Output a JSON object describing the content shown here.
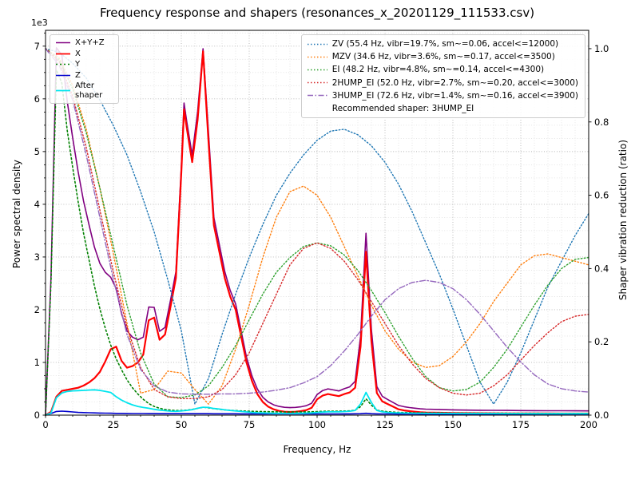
{
  "chart_data": {
    "type": "line",
    "title": "Frequency response and shapers (resonances_x_20201129_111533.csv)",
    "xlabel": "Frequency, Hz",
    "ylabel_left": "Power spectral density",
    "ylabel_right": "Shaper vibration reduction (ratio)",
    "grid": "both",
    "legend_positions": [
      "upper-left",
      "upper-right"
    ],
    "xlim": [
      0,
      200
    ],
    "x_major_ticks": [
      0,
      25,
      50,
      75,
      100,
      125,
      150,
      175,
      200
    ],
    "x_minor_step": 5,
    "left_axis": {
      "lim": [
        0,
        7300
      ],
      "ticks": [
        0,
        1000,
        2000,
        3000,
        4000,
        5000,
        6000,
        7000
      ],
      "tick_labels": [
        "0",
        "1",
        "2",
        "3",
        "4",
        "5",
        "6",
        "7"
      ],
      "minor_step": 250,
      "offset_text": "1e3"
    },
    "right_axis": {
      "lim": [
        0,
        1.05
      ],
      "ticks": [
        0,
        0.2,
        0.4,
        0.6,
        0.8,
        1.0
      ],
      "tick_labels": [
        "0.0",
        "0.2",
        "0.4",
        "0.6",
        "0.8",
        "1.0"
      ]
    },
    "psd_x": [
      0,
      2,
      4,
      6,
      8,
      10,
      12,
      14,
      16,
      18,
      20,
      22,
      24,
      26,
      28,
      30,
      32,
      34,
      36,
      38,
      40,
      42,
      44,
      46,
      48,
      50,
      51,
      52,
      54,
      56,
      58,
      60,
      62,
      64,
      66,
      68,
      70,
      72,
      74,
      76,
      78,
      80,
      82,
      84,
      86,
      88,
      90,
      92,
      94,
      96,
      98,
      100,
      102,
      104,
      106,
      108,
      110,
      112,
      114,
      116,
      118,
      120,
      122,
      124,
      126,
      128,
      130,
      132,
      134,
      136,
      138,
      140,
      145,
      150,
      155,
      160,
      165,
      170,
      175,
      180,
      185,
      190,
      195,
      200
    ],
    "psd_series": [
      {
        "name": "X+Y+Z",
        "color": "#800080",
        "dash": "",
        "width": 1.6,
        "y": [
          0,
          2590,
          6970,
          6835,
          5950,
          5260,
          4620,
          4060,
          3615,
          3190,
          2880,
          2710,
          2615,
          2405,
          1925,
          1600,
          1480,
          1430,
          1480,
          2050,
          2045,
          1590,
          1665,
          2175,
          2715,
          4715,
          5920,
          5570,
          4935,
          5755,
          6950,
          5365,
          3745,
          3235,
          2725,
          2365,
          2110,
          1605,
          1100,
          745,
          495,
          340,
          250,
          195,
          165,
          148,
          142,
          147,
          158,
          179,
          226,
          390,
          465,
          498,
          479,
          459,
          502,
          536,
          640,
          1490,
          3450,
          1620,
          540,
          358,
          297,
          240,
          183,
          161,
          144,
          132,
          120,
          114,
          107,
          100,
          96,
          93,
          91,
          89,
          86,
          85,
          84,
          83,
          82,
          81
        ]
      },
      {
        "name": "X",
        "color": "#ff0000",
        "dash": "",
        "width": 2.2,
        "y": [
          0,
          60,
          350,
          460,
          480,
          500,
          520,
          560,
          620,
          700,
          820,
          1020,
          1250,
          1300,
          1030,
          900,
          930,
          1000,
          1150,
          1800,
          1850,
          1430,
          1530,
          2050,
          2600,
          4600,
          5800,
          5450,
          4800,
          5600,
          6900,
          5200,
          3600,
          3100,
          2600,
          2250,
          2000,
          1500,
          1000,
          650,
          400,
          250,
          160,
          110,
          80,
          65,
          60,
          65,
          75,
          95,
          140,
          300,
          370,
          400,
          380,
          360,
          400,
          430,
          520,
          1300,
          3100,
          1400,
          420,
          260,
          210,
          160,
          110,
          90,
          75,
          65,
          55,
          50,
          45,
          40,
          38,
          36,
          35,
          34,
          33,
          32,
          32,
          31,
          31,
          30
        ]
      },
      {
        "name": "Y",
        "color": "#008000",
        "dash": "2 3",
        "width": 1.6,
        "y": [
          0,
          2500,
          6550,
          6300,
          5400,
          4700,
          4050,
          3450,
          2950,
          2450,
          2020,
          1650,
          1330,
          1070,
          860,
          670,
          520,
          400,
          300,
          220,
          165,
          130,
          108,
          95,
          88,
          90,
          92,
          95,
          108,
          128,
          150,
          140,
          122,
          110,
          100,
          92,
          86,
          80,
          76,
          72,
          70,
          68,
          66,
          64,
          62,
          61,
          60,
          60,
          61,
          62,
          64,
          68,
          72,
          75,
          76,
          76,
          78,
          82,
          95,
          160,
          310,
          190,
          95,
          75,
          65,
          58,
          52,
          50,
          48,
          46,
          45,
          44,
          42,
          40,
          39,
          38,
          37,
          36,
          35,
          35,
          34,
          34,
          33,
          33
        ]
      },
      {
        "name": "Z",
        "color": "#0000cd",
        "dash": "",
        "width": 1.6,
        "y": [
          0,
          30,
          70,
          75,
          70,
          60,
          52,
          48,
          45,
          42,
          40,
          38,
          36,
          34,
          33,
          32,
          31,
          30,
          30,
          29,
          29,
          28,
          28,
          28,
          27,
          27,
          27,
          27,
          27,
          28,
          28,
          27,
          26,
          26,
          25,
          25,
          25,
          24,
          24,
          24,
          23,
          23,
          23,
          22,
          22,
          22,
          22,
          22,
          22,
          22,
          22,
          23,
          23,
          23,
          23,
          23,
          24,
          24,
          25,
          28,
          35,
          28,
          24,
          23,
          22,
          22,
          21,
          21,
          21,
          21,
          20,
          20,
          20,
          20,
          19,
          19,
          19,
          19,
          18,
          18,
          18,
          18,
          18,
          18
        ]
      },
      {
        "name": "After shaper",
        "color": "#00e5ee",
        "dash": "",
        "width": 1.8,
        "y": [
          0,
          40,
          330,
          420,
          450,
          460,
          465,
          470,
          475,
          480,
          470,
          450,
          430,
          350,
          285,
          235,
          195,
          165,
          145,
          130,
          110,
          95,
          85,
          75,
          72,
          80,
          85,
          90,
          105,
          130,
          150,
          145,
          125,
          115,
          100,
          90,
          80,
          70,
          60,
          52,
          46,
          42,
          38,
          35,
          33,
          32,
          32,
          33,
          35,
          38,
          42,
          52,
          58,
          62,
          62,
          62,
          68,
          74,
          90,
          210,
          430,
          240,
          90,
          62,
          52,
          46,
          42,
          40,
          38,
          36,
          35,
          34,
          33,
          32,
          31,
          30,
          30,
          29,
          29,
          28,
          28,
          28,
          27,
          27
        ]
      }
    ],
    "shaper_x": [
      0,
      5,
      10,
      15,
      20,
      25,
      30,
      35,
      40,
      45,
      50,
      55,
      60,
      65,
      70,
      75,
      80,
      85,
      90,
      95,
      100,
      105,
      110,
      115,
      120,
      125,
      130,
      135,
      140,
      145,
      150,
      155,
      160,
      165,
      170,
      175,
      180,
      185,
      190,
      195,
      200
    ],
    "shaper_series": [
      {
        "name": "ZV",
        "label": "ZV (55.4 Hz, vibr=19.7%, sm~=0.06, accel<=12000)",
        "color": "#1f77b4",
        "dash": "1.5 2.5",
        "width": 1.4,
        "y": [
          1.0,
          0.99,
          0.96,
          0.92,
          0.86,
          0.79,
          0.71,
          0.61,
          0.5,
          0.37,
          0.23,
          0.03,
          0.1,
          0.22,
          0.33,
          0.43,
          0.52,
          0.6,
          0.66,
          0.71,
          0.75,
          0.775,
          0.78,
          0.765,
          0.735,
          0.69,
          0.63,
          0.555,
          0.47,
          0.385,
          0.29,
          0.19,
          0.09,
          0.03,
          0.09,
          0.17,
          0.26,
          0.35,
          0.42,
          0.49,
          0.55
        ]
      },
      {
        "name": "MZV",
        "label": "MZV (34.6 Hz, vibr=3.6%, sm~=0.17, accel<=3500)",
        "color": "#ff7f0e",
        "dash": "1.5 2.5",
        "width": 1.4,
        "y": [
          1.0,
          0.975,
          0.9,
          0.78,
          0.62,
          0.44,
          0.25,
          0.06,
          0.07,
          0.12,
          0.115,
          0.07,
          0.03,
          0.08,
          0.18,
          0.3,
          0.43,
          0.54,
          0.61,
          0.625,
          0.6,
          0.54,
          0.46,
          0.38,
          0.3,
          0.23,
          0.18,
          0.145,
          0.13,
          0.135,
          0.16,
          0.2,
          0.25,
          0.31,
          0.36,
          0.41,
          0.435,
          0.44,
          0.43,
          0.42,
          0.41
        ]
      },
      {
        "name": "EI",
        "label": "EI (48.2 Hz, vibr=4.8%, sm~=0.14, accel<=4300)",
        "color": "#2ca02c",
        "dash": "1.5 2.5",
        "width": 1.4,
        "y": [
          1.0,
          0.97,
          0.89,
          0.77,
          0.62,
          0.46,
          0.3,
          0.17,
          0.085,
          0.05,
          0.048,
          0.055,
          0.08,
          0.13,
          0.19,
          0.26,
          0.33,
          0.39,
          0.43,
          0.46,
          0.47,
          0.462,
          0.437,
          0.395,
          0.34,
          0.28,
          0.215,
          0.155,
          0.105,
          0.075,
          0.066,
          0.07,
          0.09,
          0.13,
          0.18,
          0.24,
          0.3,
          0.355,
          0.4,
          0.425,
          0.43
        ]
      },
      {
        "name": "2HUMP_EI",
        "label": "2HUMP_EI (52.0 Hz, vibr=2.7%, sm~=0.20, accel<=3000)",
        "color": "#d62728",
        "dash": "1.5 2.5",
        "width": 1.4,
        "y": [
          1.0,
          0.965,
          0.87,
          0.73,
          0.56,
          0.39,
          0.24,
          0.13,
          0.07,
          0.05,
          0.045,
          0.045,
          0.05,
          0.07,
          0.11,
          0.17,
          0.25,
          0.33,
          0.41,
          0.455,
          0.47,
          0.455,
          0.42,
          0.37,
          0.31,
          0.25,
          0.19,
          0.14,
          0.1,
          0.075,
          0.06,
          0.055,
          0.06,
          0.08,
          0.11,
          0.15,
          0.19,
          0.225,
          0.255,
          0.27,
          0.275
        ]
      },
      {
        "name": "3HUMP_EI",
        "label": "3HUMP_EI (72.6 Hz, vibr=1.4%, sm~=0.16, accel<=3900)",
        "color": "#9467bd",
        "dash": "7 2.5 1.5 2.5",
        "width": 1.4,
        "y": [
          1.0,
          0.955,
          0.86,
          0.71,
          0.54,
          0.37,
          0.22,
          0.125,
          0.08,
          0.063,
          0.058,
          0.057,
          0.057,
          0.058,
          0.058,
          0.06,
          0.063,
          0.068,
          0.075,
          0.088,
          0.105,
          0.135,
          0.175,
          0.22,
          0.27,
          0.315,
          0.345,
          0.362,
          0.368,
          0.362,
          0.345,
          0.315,
          0.275,
          0.23,
          0.185,
          0.145,
          0.11,
          0.085,
          0.072,
          0.066,
          0.063
        ]
      }
    ],
    "recommendation": "Recommended shaper: 3HUMP_EI"
  }
}
